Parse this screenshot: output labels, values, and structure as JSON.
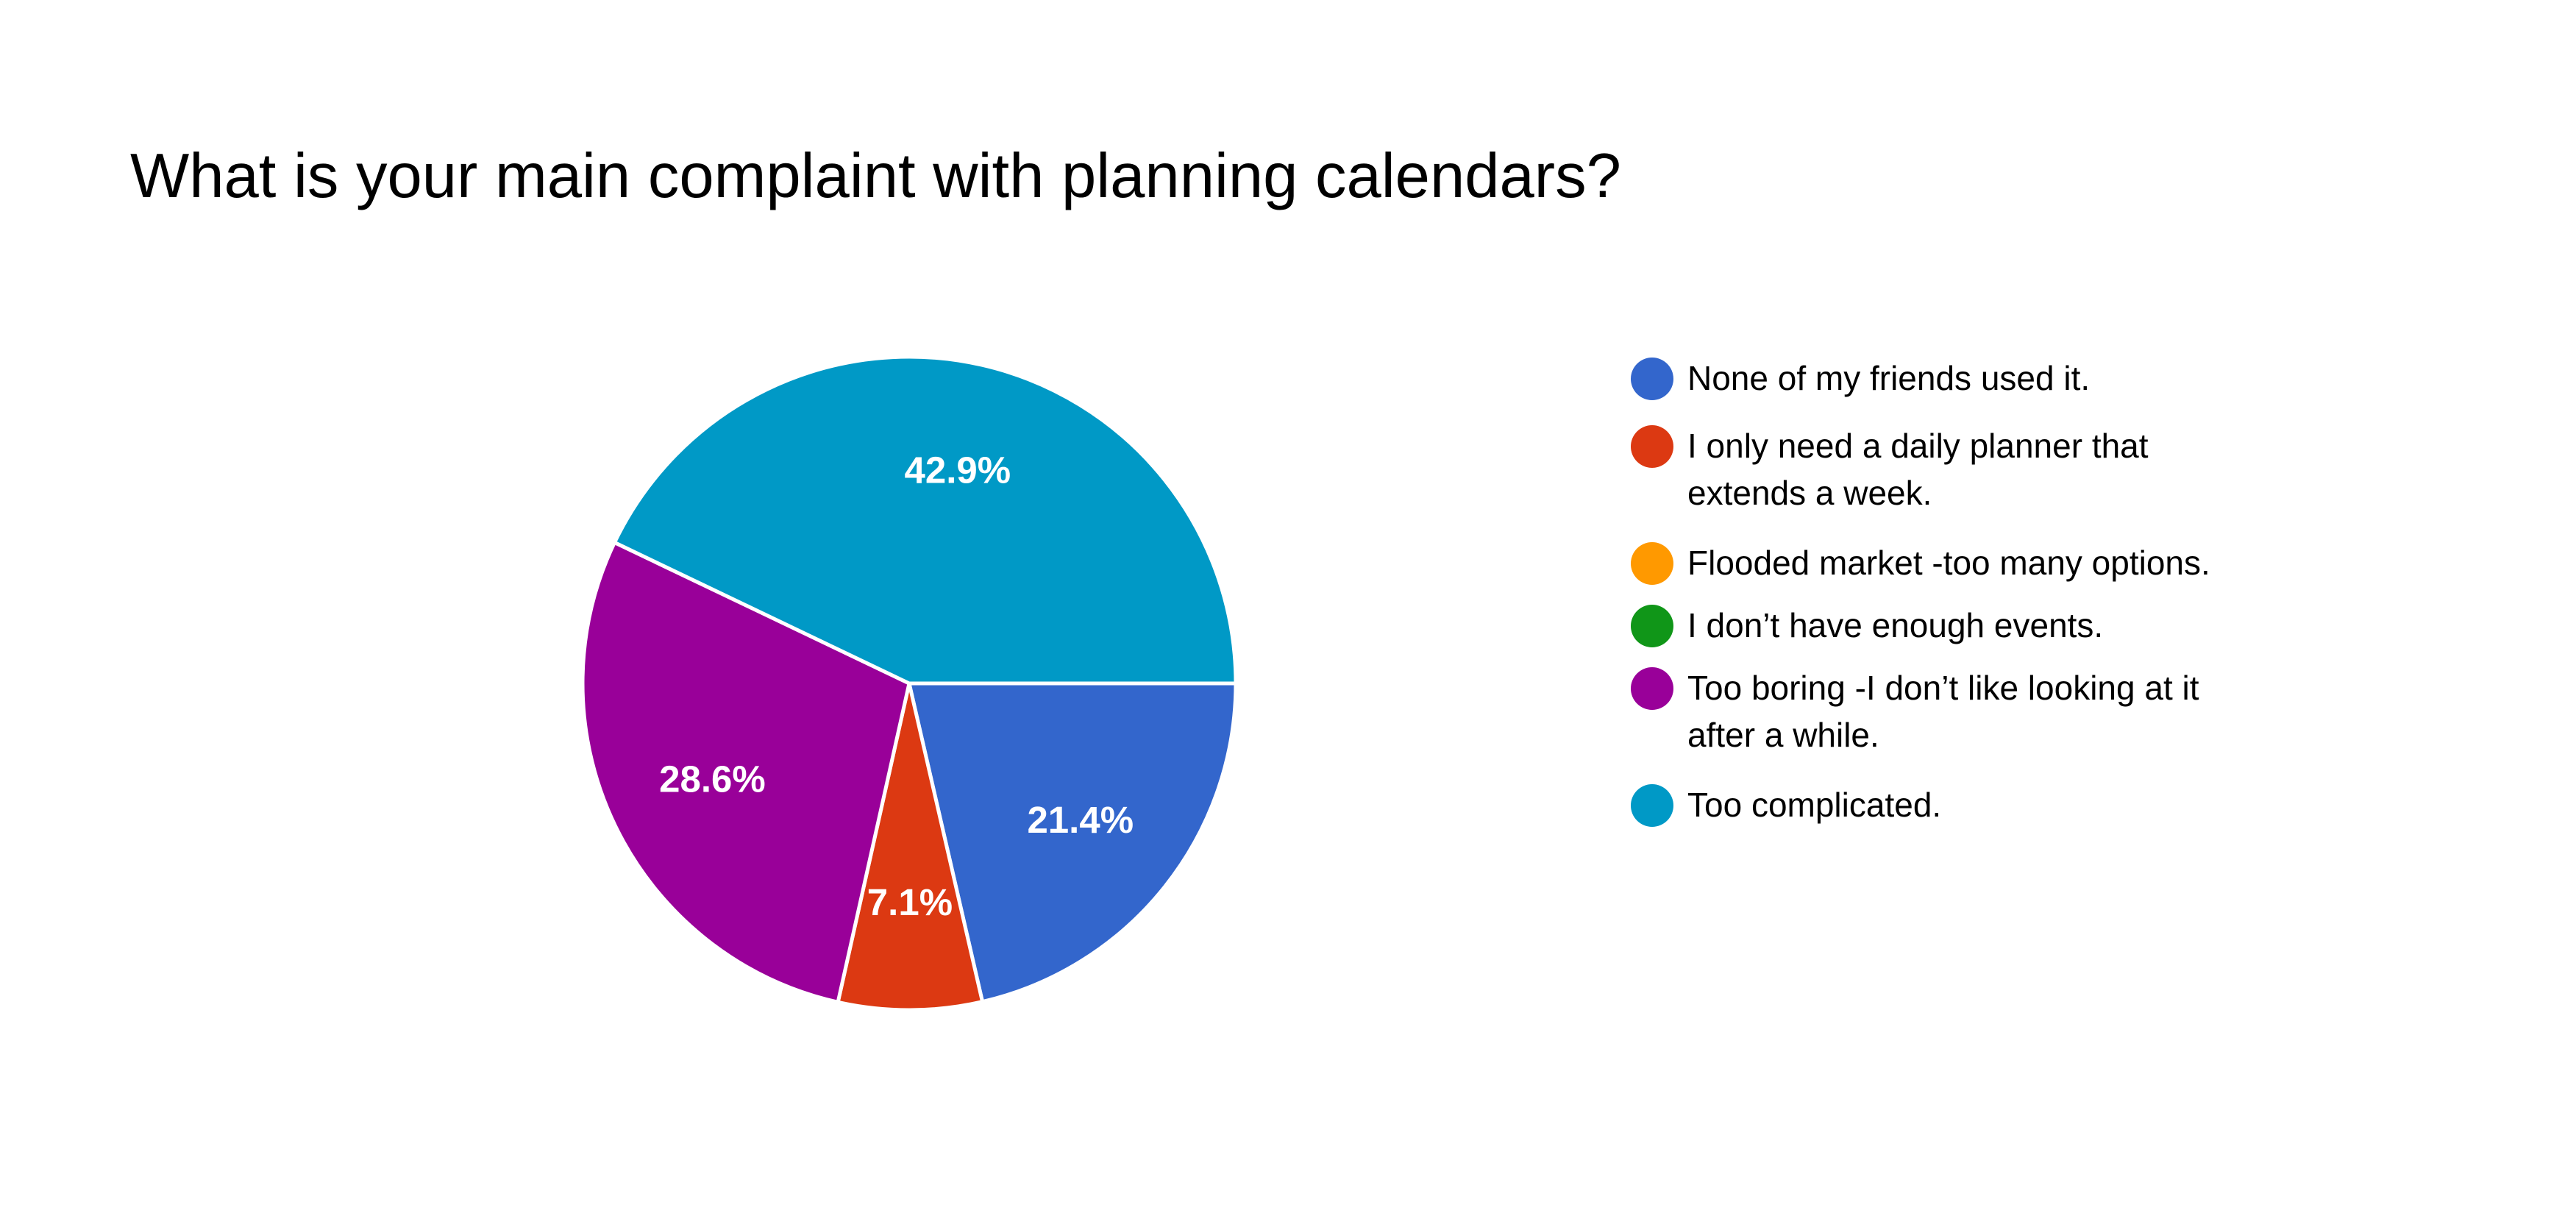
{
  "chart_data": {
    "type": "pie",
    "title": "What is your main complaint with planning calendars?",
    "slices": [
      {
        "label": "None of my friends used it.",
        "value": 21.4,
        "display": "21.4%",
        "color": "#3366cc"
      },
      {
        "label": "I only need a daily planner that extends a week.",
        "value": 7.1,
        "display": "7.1%",
        "color": "#dc3912"
      },
      {
        "label": "Flooded market -too many options.",
        "value": 0,
        "display": "",
        "color": "#ff9900"
      },
      {
        "label": "I don’t have enough events.",
        "value": 0,
        "display": "",
        "color": "#109618"
      },
      {
        "label": "Too boring -I don’t like looking at it after a while.",
        "value": 28.6,
        "display": "28.6%",
        "color": "#990099"
      },
      {
        "label": "Too complicated.",
        "value": 42.9,
        "display": "42.9%",
        "color": "#0099c6"
      }
    ],
    "legend_position": "right",
    "start": "3 o'clock",
    "direction": "clockwise"
  }
}
